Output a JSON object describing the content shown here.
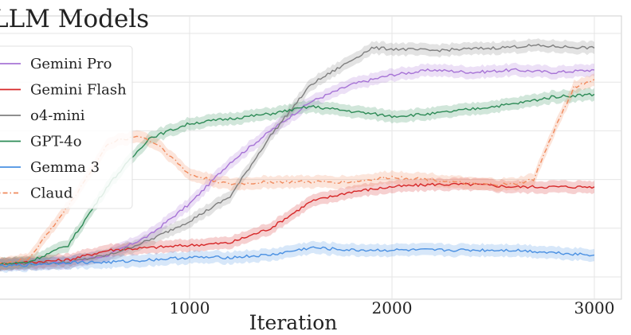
{
  "chart_data": {
    "type": "line",
    "title": "LLM Models",
    "xlabel": "Iteration",
    "ylabel": "",
    "xlim": [
      0,
      3000
    ],
    "ylim": [
      0,
      1
    ],
    "xticks": [
      1000,
      2000,
      3000
    ],
    "grid": true,
    "legend_placement": "upper-left",
    "series": [
      {
        "name": "Gemini Pro",
        "color": "#a774d6",
        "dash": "solid",
        "points": [
          [
            0,
            0.05
          ],
          [
            400,
            0.06
          ],
          [
            600,
            0.09
          ],
          [
            800,
            0.17
          ],
          [
            1000,
            0.3
          ],
          [
            1200,
            0.47
          ],
          [
            1400,
            0.6
          ],
          [
            1600,
            0.72
          ],
          [
            1800,
            0.79
          ],
          [
            2000,
            0.83
          ],
          [
            2200,
            0.85
          ],
          [
            2400,
            0.84
          ],
          [
            2600,
            0.85
          ],
          [
            2800,
            0.84
          ],
          [
            3000,
            0.85
          ]
        ]
      },
      {
        "name": "Gemini Flash",
        "color": "#d62728",
        "dash": "solid",
        "points": [
          [
            0,
            0.05
          ],
          [
            400,
            0.07
          ],
          [
            600,
            0.11
          ],
          [
            800,
            0.12
          ],
          [
            1000,
            0.13
          ],
          [
            1200,
            0.14
          ],
          [
            1400,
            0.2
          ],
          [
            1600,
            0.31
          ],
          [
            1800,
            0.35
          ],
          [
            2000,
            0.37
          ],
          [
            2200,
            0.38
          ],
          [
            2400,
            0.38
          ],
          [
            2600,
            0.37
          ],
          [
            2800,
            0.37
          ],
          [
            3000,
            0.37
          ]
        ]
      },
      {
        "name": "o4-mini",
        "color": "#7f7f7f",
        "dash": "solid",
        "points": [
          [
            0,
            0.05
          ],
          [
            400,
            0.06
          ],
          [
            600,
            0.09
          ],
          [
            800,
            0.15
          ],
          [
            1000,
            0.23
          ],
          [
            1200,
            0.33
          ],
          [
            1400,
            0.58
          ],
          [
            1600,
            0.79
          ],
          [
            1800,
            0.89
          ],
          [
            1900,
            0.94
          ],
          [
            2200,
            0.93
          ],
          [
            2500,
            0.94
          ],
          [
            2700,
            0.95
          ],
          [
            3000,
            0.94
          ]
        ]
      },
      {
        "name": "GPT-4o",
        "color": "#2e8b57",
        "dash": "solid",
        "points": [
          [
            0,
            0.05
          ],
          [
            200,
            0.06
          ],
          [
            400,
            0.13
          ],
          [
            600,
            0.38
          ],
          [
            800,
            0.57
          ],
          [
            1000,
            0.63
          ],
          [
            1200,
            0.65
          ],
          [
            1400,
            0.67
          ],
          [
            1600,
            0.7
          ],
          [
            1800,
            0.68
          ],
          [
            2000,
            0.66
          ],
          [
            2200,
            0.67
          ],
          [
            2400,
            0.69
          ],
          [
            2600,
            0.71
          ],
          [
            2800,
            0.74
          ],
          [
            3000,
            0.75
          ]
        ]
      },
      {
        "name": "Gemma 3",
        "color": "#4a90e2",
        "dash": "solid",
        "points": [
          [
            0,
            0.04
          ],
          [
            400,
            0.06
          ],
          [
            600,
            0.06
          ],
          [
            800,
            0.07
          ],
          [
            1000,
            0.08
          ],
          [
            1200,
            0.08
          ],
          [
            1400,
            0.09
          ],
          [
            1600,
            0.12
          ],
          [
            1800,
            0.11
          ],
          [
            2000,
            0.11
          ],
          [
            2200,
            0.11
          ],
          [
            2400,
            0.11
          ],
          [
            2600,
            0.11
          ],
          [
            2800,
            0.1
          ],
          [
            3000,
            0.09
          ]
        ]
      },
      {
        "name": "Claud",
        "color": "#f08a5d",
        "dash": "dashdot",
        "points": [
          [
            0,
            0.05
          ],
          [
            200,
            0.07
          ],
          [
            400,
            0.29
          ],
          [
            600,
            0.55
          ],
          [
            750,
            0.58
          ],
          [
            850,
            0.54
          ],
          [
            1000,
            0.42
          ],
          [
            1200,
            0.38
          ],
          [
            1400,
            0.39
          ],
          [
            1600,
            0.39
          ],
          [
            1800,
            0.39
          ],
          [
            2000,
            0.41
          ],
          [
            2200,
            0.4
          ],
          [
            2400,
            0.38
          ],
          [
            2600,
            0.38
          ],
          [
            2700,
            0.4
          ],
          [
            2800,
            0.6
          ],
          [
            2900,
            0.78
          ],
          [
            3000,
            0.81
          ]
        ]
      }
    ]
  }
}
